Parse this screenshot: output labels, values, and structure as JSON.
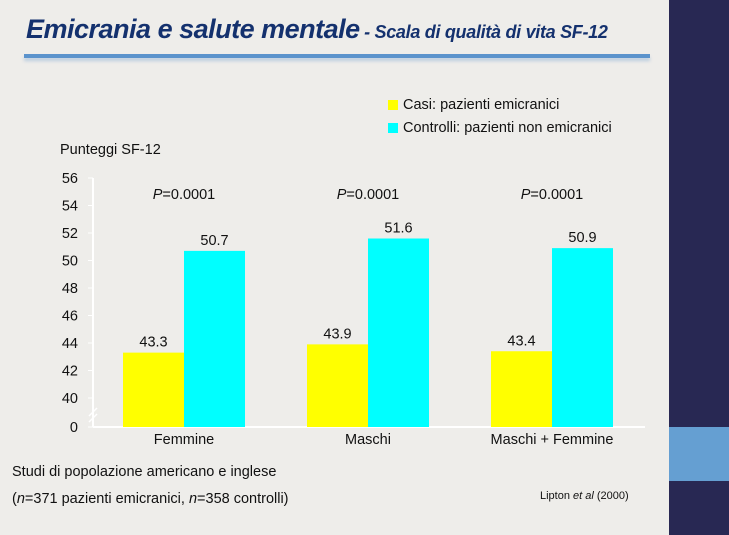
{
  "title": {
    "main": "Emicrania e salute mentale",
    "sub": "- Scala di qualità di vita SF-12"
  },
  "colors": {
    "cases": "#ffff00",
    "controls": "#00ffff",
    "title": "#14316e"
  },
  "chart_data": {
    "type": "bar",
    "ylabel": "Punteggi SF-12",
    "yticks": [
      0,
      40,
      42,
      44,
      46,
      48,
      50,
      52,
      54,
      56
    ],
    "ylim": [
      40,
      56
    ],
    "axis_break": "0 to 40",
    "categories": [
      "Femmine",
      "Maschi",
      "Maschi + Femmine"
    ],
    "series": [
      {
        "name": "Casi: pazienti emicranici",
        "values": [
          43.3,
          43.9,
          43.4
        ]
      },
      {
        "name": "Controlli: pazienti non emicranici",
        "values": [
          50.7,
          51.6,
          50.9
        ]
      }
    ],
    "annotations": [
      {
        "prefix": "P",
        "text": "=0.0001"
      },
      {
        "prefix": "P",
        "text": "=0.0001"
      },
      {
        "prefix": "P",
        "text": "=0.0001"
      }
    ],
    "legend": "top-right",
    "grid": false
  },
  "footer": {
    "study": "Studi di popolazione americano e inglese",
    "n_open": "(",
    "n1": "n",
    "n1_text": "=371 pazienti emicranici, ",
    "n2": "n",
    "n2_text": "=358 controlli)",
    "citation_author": "Lipton ",
    "citation_etal": "et al",
    "citation_year": " (2000)"
  }
}
